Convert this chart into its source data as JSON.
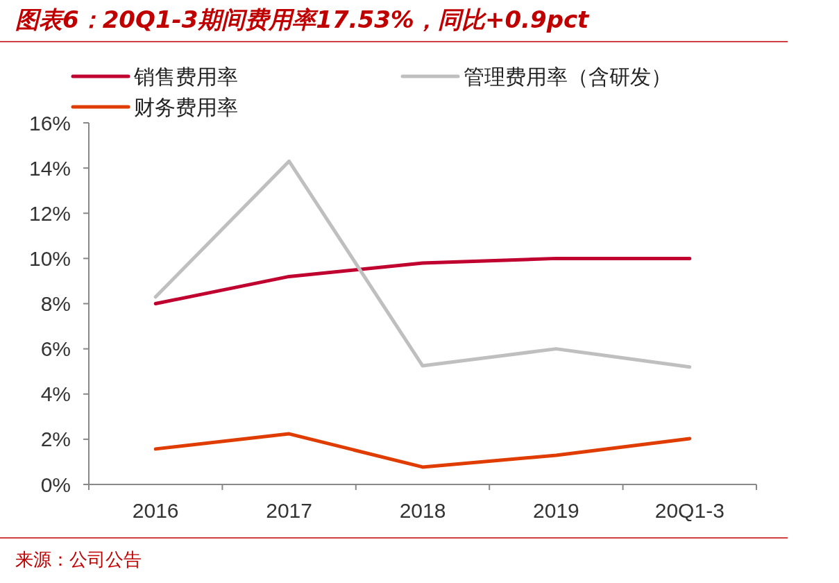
{
  "chart_data": {
    "type": "line",
    "title": "图表6：20Q1-3期间费用率17.53%，同比+0.9pct",
    "categories": [
      "2016",
      "2017",
      "2018",
      "2019",
      "20Q1-3"
    ],
    "series": [
      {
        "name": "销售费用率",
        "color": "#c0002f",
        "values": [
          8.0,
          9.2,
          9.8,
          10.0,
          10.0
        ]
      },
      {
        "name": "管理费用率（含研发）",
        "color": "#bfbfbf",
        "values": [
          8.3,
          14.3,
          5.25,
          6.0,
          5.2
        ]
      },
      {
        "name": "财务费用率",
        "color": "#e03c00",
        "values": [
          1.57,
          2.24,
          0.77,
          1.29,
          2.03
        ]
      }
    ],
    "ylim": [
      0,
      16
    ],
    "yticks": [
      {
        "value": 0,
        "label": "0%"
      },
      {
        "value": 2,
        "label": "2%"
      },
      {
        "value": 4,
        "label": "4%"
      },
      {
        "value": 6,
        "label": "6%"
      },
      {
        "value": 8,
        "label": "8%"
      },
      {
        "value": 10,
        "label": "10%"
      },
      {
        "value": 12,
        "label": "12%"
      },
      {
        "value": 14,
        "label": "14%"
      },
      {
        "value": 16,
        "label": "16%"
      }
    ],
    "grid": false,
    "legend": "top",
    "marker": "none",
    "line_style": "solid",
    "annotations": [
      "来源：公司公告"
    ]
  }
}
